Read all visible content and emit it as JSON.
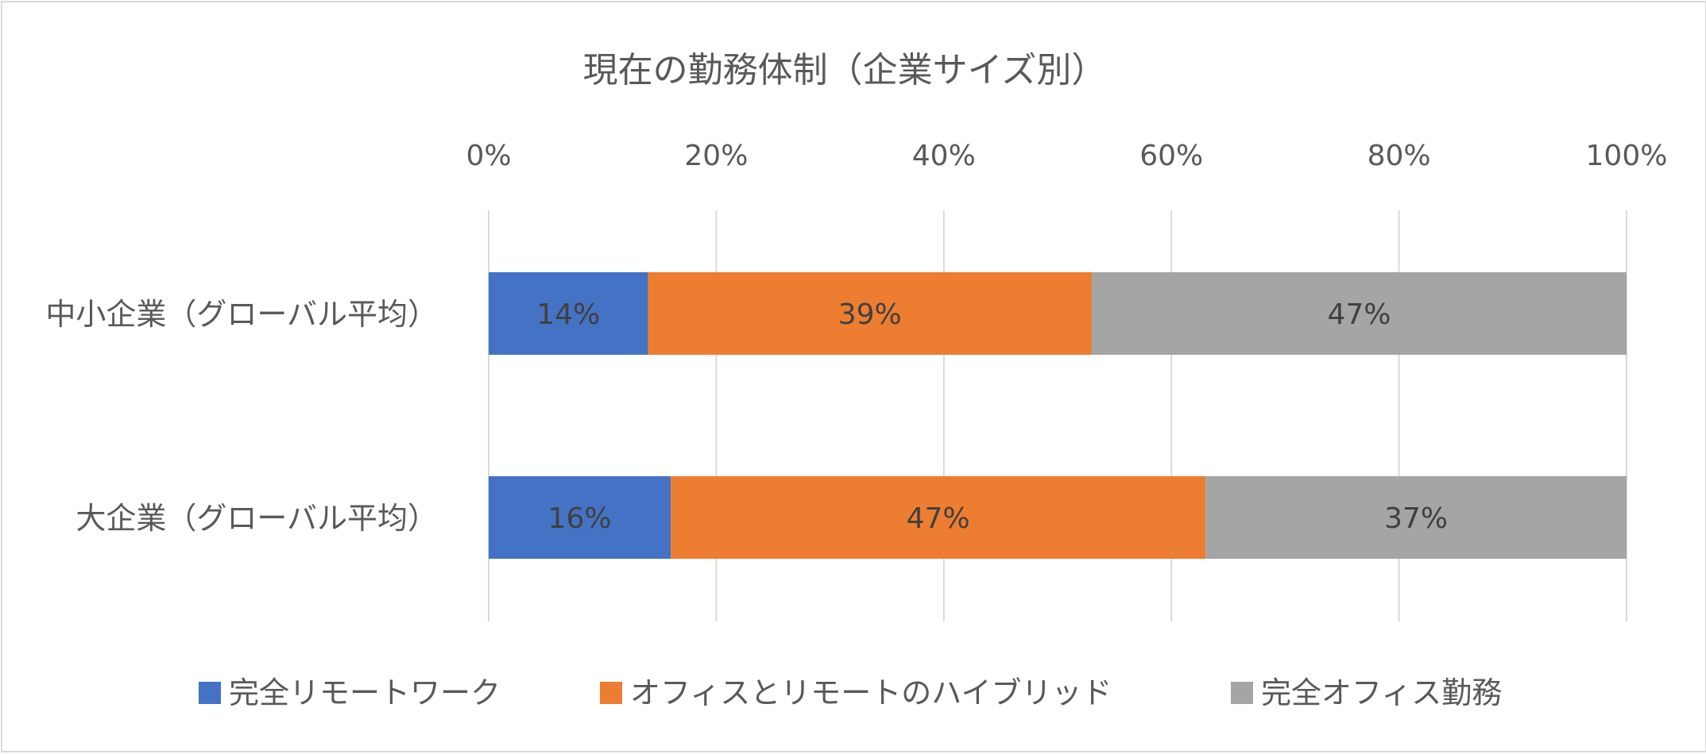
{
  "chart_data": {
    "type": "bar",
    "orientation": "horizontal",
    "stacked": "percent",
    "title": "現在の勤務体制（企業サイズ別）",
    "categories": [
      "中小企業（グローバル平均）",
      "大企業（グローバル平均）"
    ],
    "series": [
      {
        "name": "完全リモートワーク",
        "color": "#4472C4",
        "values": [
          14,
          16
        ],
        "labels": [
          "14%",
          "16%"
        ]
      },
      {
        "name": "オフィスとリモートのハイブリッド",
        "color": "#ED7D31",
        "values": [
          39,
          47
        ],
        "labels": [
          "39%",
          "47%"
        ]
      },
      {
        "name": "完全オフィス勤務",
        "color": "#A5A5A5",
        "values": [
          47,
          37
        ],
        "labels": [
          "47%",
          "37%"
        ]
      }
    ],
    "xlim": [
      0,
      100
    ],
    "xticks": [
      "0%",
      "20%",
      "40%",
      "60%",
      "80%",
      "100%"
    ],
    "xaxis_position": "top",
    "grid": true,
    "legend_position": "bottom",
    "text_color": "#595959",
    "grid_color": "#d9d9d9"
  }
}
